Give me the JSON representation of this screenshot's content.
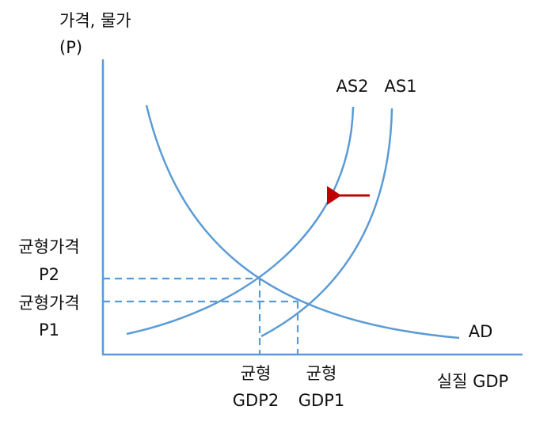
{
  "axes": {
    "y_label": [
      "가격, 물가",
      "(P)"
    ],
    "x_label": "실질 GDP"
  },
  "curves": [
    {
      "label": "AS2"
    },
    {
      "label": "AS1"
    },
    {
      "label": "AD"
    }
  ],
  "equilibria": [
    {
      "price_label": [
        "균형가격",
        "P2"
      ],
      "gdp_label": [
        "균형",
        "GDP2"
      ]
    },
    {
      "price_label": [
        "균형가격",
        "P1"
      ],
      "gdp_label": [
        "균형",
        "GDP1"
      ]
    }
  ]
}
